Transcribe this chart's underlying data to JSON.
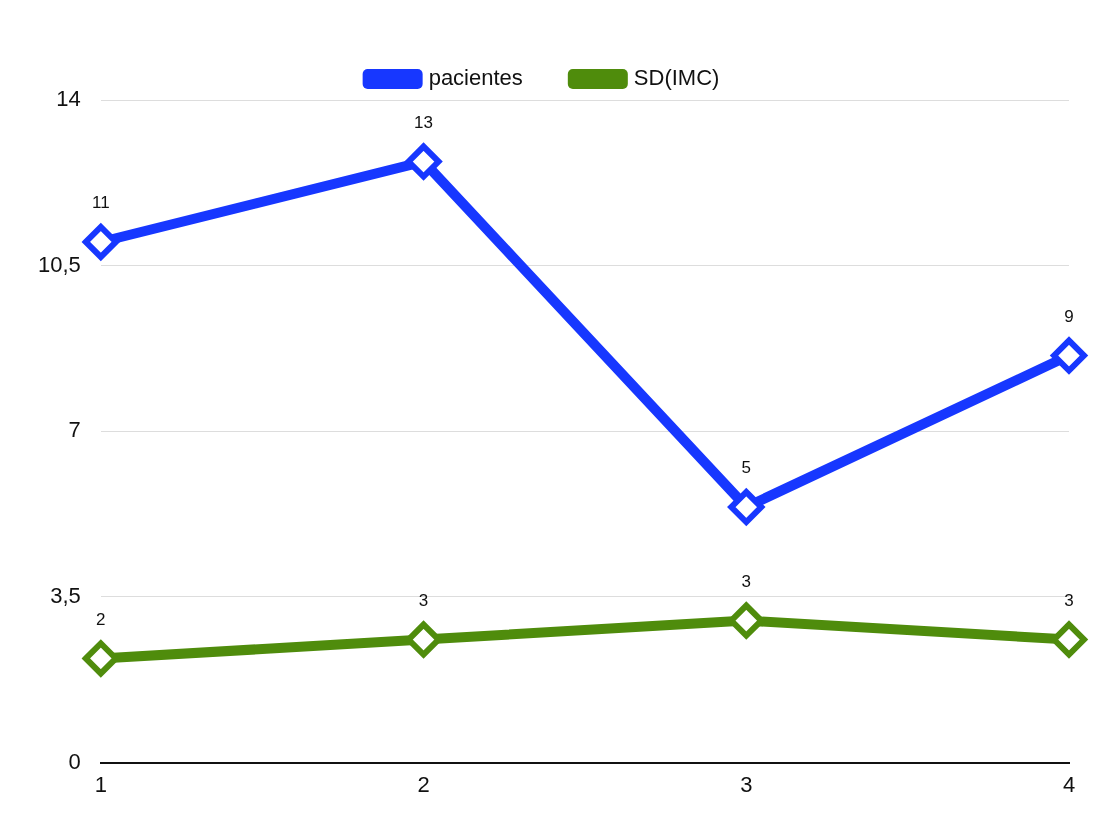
{
  "chart_data": {
    "type": "line",
    "categories": [
      "1",
      "2",
      "3",
      "4"
    ],
    "series": [
      {
        "name": "pacientes",
        "color": "#1737ff",
        "values": [
          11,
          12.7,
          5.4,
          8.6
        ],
        "value_labels": [
          "11",
          "13",
          "5",
          "9"
        ]
      },
      {
        "name": "SD(IMC)",
        "color": "#4f8c0c",
        "values": [
          2.2,
          2.6,
          3.0,
          2.6
        ],
        "value_labels": [
          "2",
          "3",
          "3",
          "3"
        ]
      }
    ],
    "ylim": [
      0,
      14
    ],
    "yticks": [
      0,
      {
        "value": 3.5,
        "label": "3,5"
      },
      7,
      {
        "value": 10.5,
        "label": "10,5"
      },
      14
    ],
    "grid": "y",
    "legend": "top",
    "marker": "diamond",
    "line_style": "solid"
  }
}
